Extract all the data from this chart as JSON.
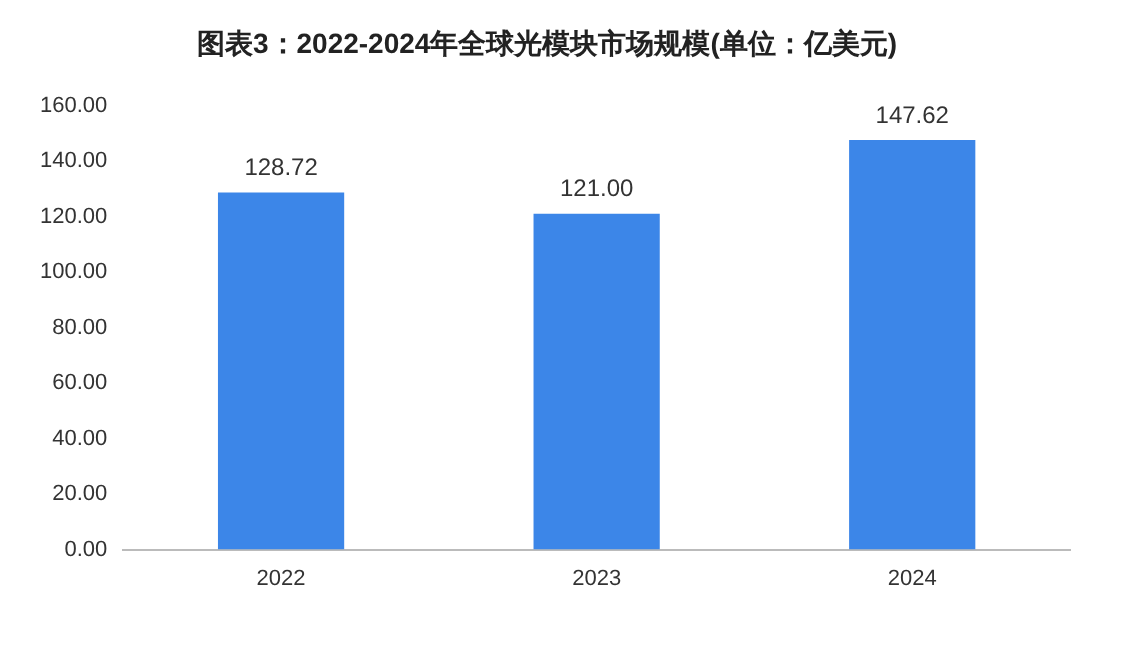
{
  "chart_data": {
    "type": "bar",
    "title": "图表3：2022-2024年全球光模块市场规模(单位：亿美元)",
    "categories": [
      "2022",
      "2023",
      "2024"
    ],
    "values": [
      128.72,
      121,
      147.62
    ],
    "value_labels": [
      "128.72",
      "121.00",
      "147.62"
    ],
    "color": "#3c86e8",
    "ylim": [
      0,
      160
    ],
    "yticks": [
      {
        "value": 0,
        "label": "0.00"
      },
      {
        "value": 20,
        "label": "20.00"
      },
      {
        "value": 40,
        "label": "40.00"
      },
      {
        "value": 60,
        "label": "60.00"
      },
      {
        "value": 80,
        "label": "80.00"
      },
      {
        "value": 100,
        "label": "100.00"
      },
      {
        "value": 120,
        "label": "120.00"
      },
      {
        "value": 140,
        "label": "140.00"
      },
      {
        "value": 160,
        "label": "160.00"
      }
    ],
    "grid": false,
    "legend": false
  }
}
